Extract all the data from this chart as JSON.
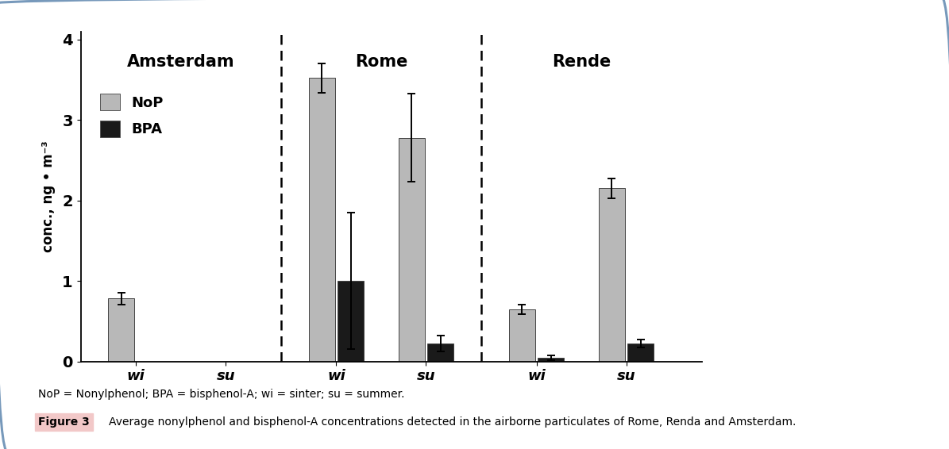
{
  "nop_values": [
    0.78,
    0.0,
    3.52,
    2.78,
    0.65,
    2.15
  ],
  "bpa_values": [
    0.0,
    0.0,
    1.0,
    0.22,
    0.05,
    0.22
  ],
  "nop_errors": [
    0.07,
    0.0,
    0.18,
    0.55,
    0.06,
    0.12
  ],
  "bpa_errors": [
    0.0,
    0.0,
    0.85,
    0.1,
    0.03,
    0.05
  ],
  "bar_color_nop": "#b8b8b8",
  "bar_color_bpa": "#1a1a1a",
  "bar_width": 0.38,
  "ylim": [
    0,
    4.1
  ],
  "yticks": [
    0,
    1,
    2,
    3,
    4
  ],
  "ylabel": "conc., ng • m⁻³",
  "group_labels": [
    "wi",
    "su",
    "wi",
    "su",
    "wi",
    "su"
  ],
  "city_labels": [
    "Amsterdam",
    "Rome",
    "Rende"
  ],
  "city_label_fontsize": 15,
  "axis_label_fontsize": 12,
  "tick_fontsize": 13,
  "legend_fontsize": 13,
  "figure_bg": "#ffffff",
  "plot_bg": "#ffffff",
  "border_color": "#7799bb",
  "note_text": "NoP = Nonylphenol; BPA = bisphenol-A; wi = sinter; su = summer.",
  "caption_label": "Figure 3",
  "caption_text": "Average nonylphenol and bisphenol-A concentrations detected in the airborne particulates of Rome, Renda and Amsterdam.",
  "caption_bg": "#f2c8c8",
  "group_positions": [
    1.2,
    2.5,
    4.1,
    5.4,
    7.0,
    8.3
  ],
  "div1_x": 3.3,
  "div2_x": 6.2,
  "xlim": [
    0.4,
    9.4
  ]
}
